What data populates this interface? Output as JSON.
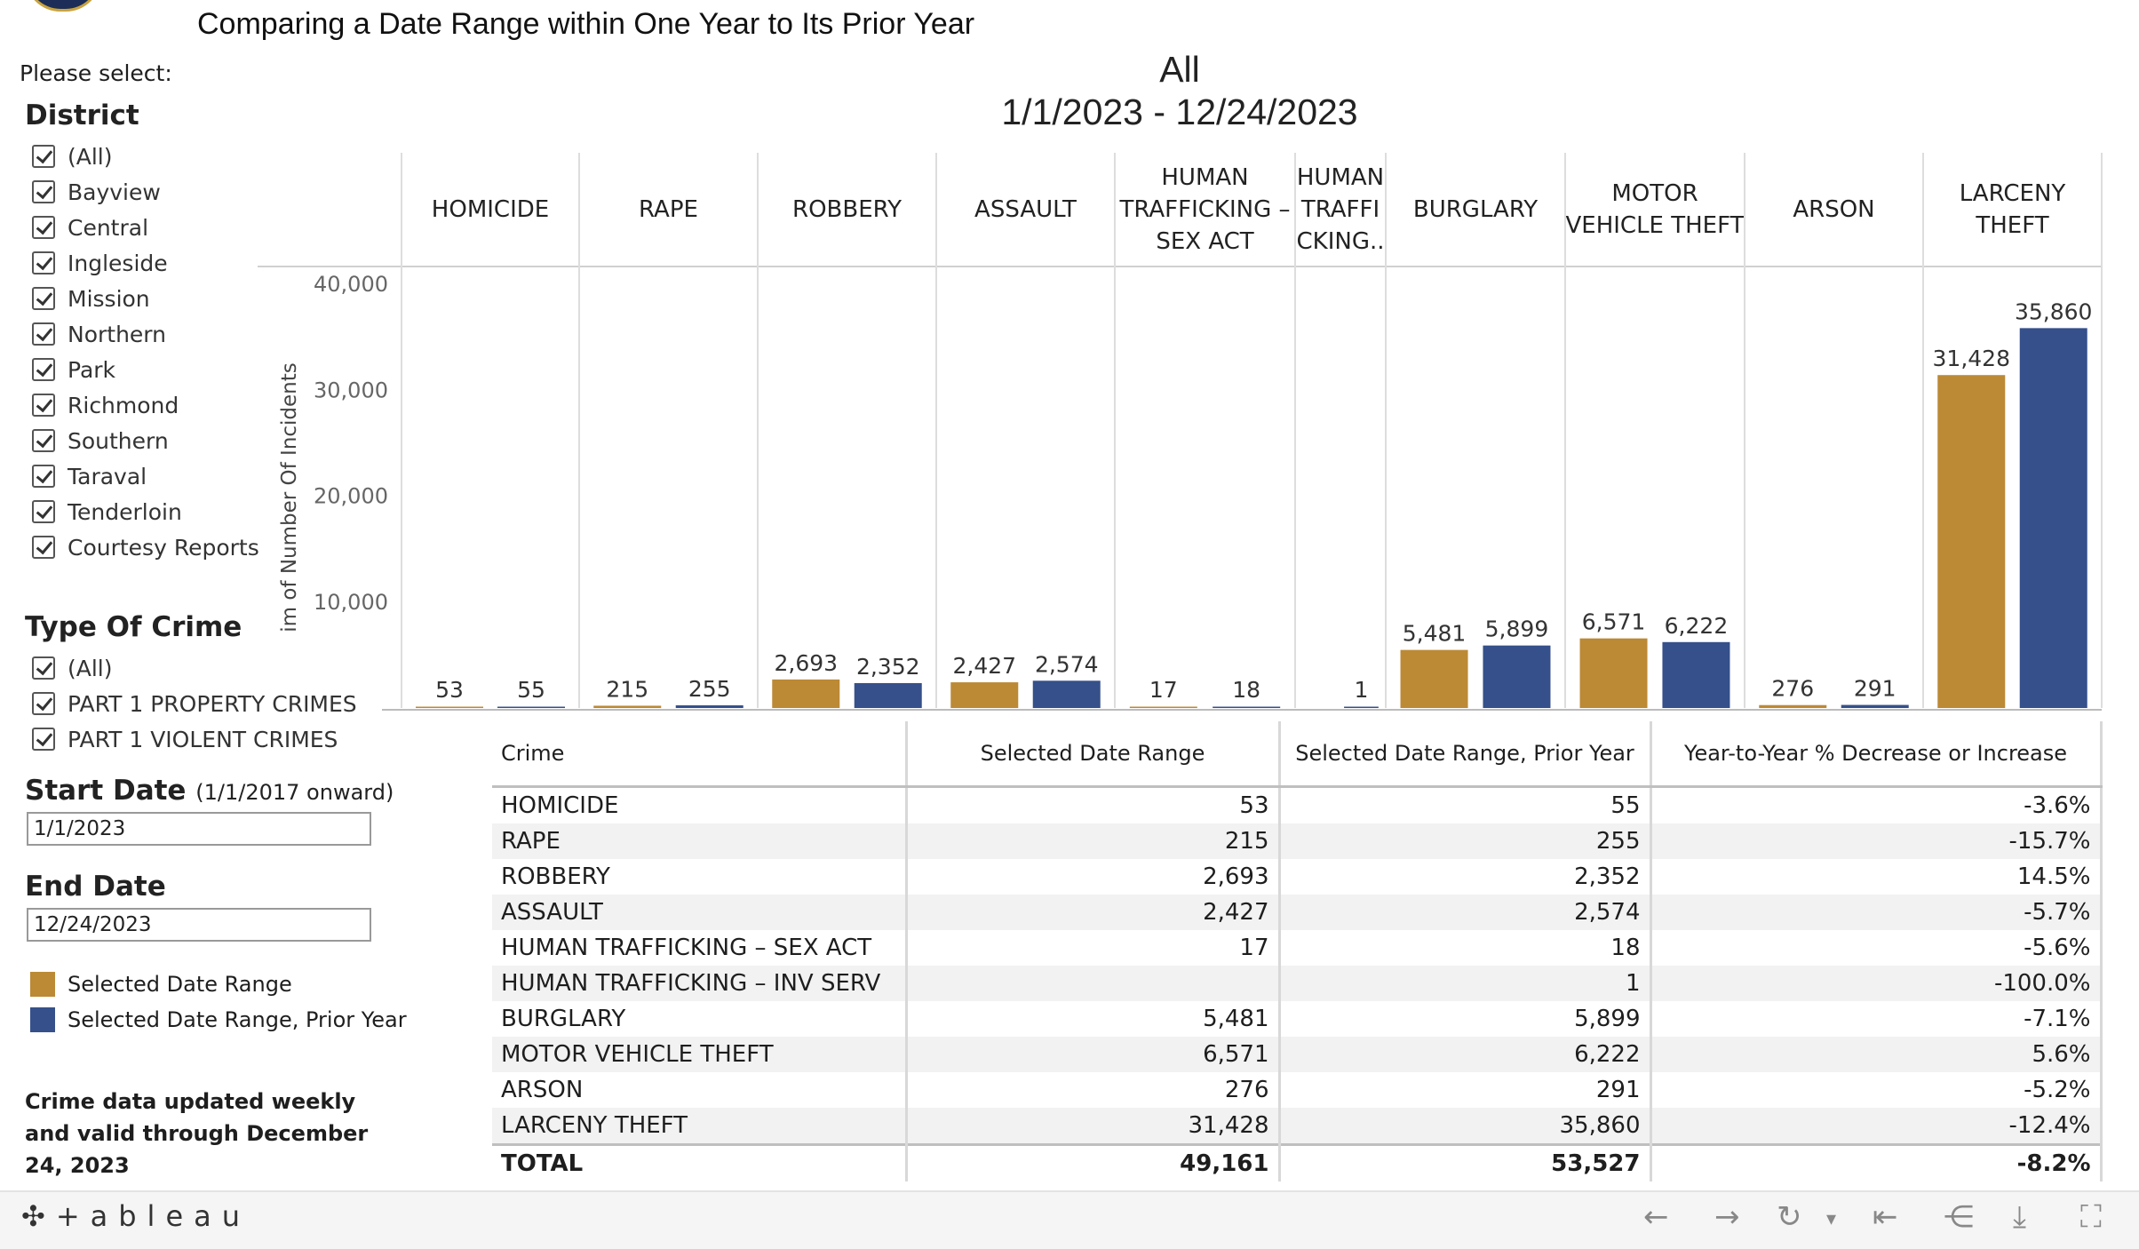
{
  "page_title": "Comparing a Date Range within One Year to Its Prior Year",
  "filters": {
    "please_select": "Please select:",
    "district": {
      "title": "District",
      "options": [
        "(All)",
        "Bayview",
        "Central",
        "Ingleside",
        "Mission",
        "Northern",
        "Park",
        "Richmond",
        "Southern",
        "Taraval",
        "Tenderloin",
        "Courtesy Reports"
      ]
    },
    "type_of_crime": {
      "title": "Type Of Crime",
      "options": [
        "(All)",
        "PART 1 PROPERTY CRIMES",
        "PART 1 VIOLENT CRIMES"
      ]
    },
    "start_date": {
      "title": "Start Date",
      "subtitle": "(1/1/2017 onward)",
      "value": "1/1/2023"
    },
    "end_date": {
      "title": "End Date",
      "value": "12/24/2023"
    }
  },
  "legend": {
    "selected": {
      "label": "Selected Date Range",
      "color": "#bc8935"
    },
    "prior": {
      "label": "Selected Date Range, Prior Year",
      "color": "#35508a"
    }
  },
  "update_note": "Crime data updated weekly and valid through December 24, 2023",
  "chart_data": {
    "type": "bar",
    "title": "All",
    "subtitle": "1/1/2023 - 12/24/2023",
    "ylabel": "im of Number Of Incidents",
    "yticks": [
      "40,000",
      "30,000",
      "20,000",
      "10,000"
    ],
    "ylim": [
      0,
      40000
    ],
    "grid": false,
    "categories": [
      "HOMICIDE",
      "RAPE",
      "ROBBERY",
      "ASSAULT",
      "HUMAN TRAFFICKING – SEX ACT",
      "HUMAN TRAFFI CKING..",
      "BURGLARY",
      "MOTOR VEHICLE THEFT",
      "ARSON",
      "LARCENY THEFT"
    ],
    "series": [
      {
        "name": "Selected Date Range",
        "color": "#bc8935",
        "values": [
          53,
          215,
          2693,
          2427,
          17,
          null,
          5481,
          6571,
          276,
          31428
        ],
        "labels": [
          "53",
          "215",
          "2,693",
          "2,427",
          "17",
          "",
          "5,481",
          "6,571",
          "276",
          "31,428"
        ]
      },
      {
        "name": "Selected Date Range, Prior Year",
        "color": "#35508a",
        "values": [
          55,
          255,
          2352,
          2574,
          18,
          1,
          5899,
          6222,
          291,
          35860
        ],
        "labels": [
          "55",
          "255",
          "2,352",
          "2,574",
          "18",
          "1",
          "5,899",
          "6,222",
          "291",
          "35,860"
        ]
      }
    ]
  },
  "table": {
    "headers": [
      "Crime",
      "Selected Date Range",
      "Selected Date Range, Prior Year",
      "Year-to-Year % Decrease or Increase"
    ],
    "rows": [
      [
        "HOMICIDE",
        "53",
        "55",
        "-3.6%"
      ],
      [
        "RAPE",
        "215",
        "255",
        "-15.7%"
      ],
      [
        "ROBBERY",
        "2,693",
        "2,352",
        "14.5%"
      ],
      [
        "ASSAULT",
        "2,427",
        "2,574",
        "-5.7%"
      ],
      [
        "HUMAN TRAFFICKING – SEX ACT",
        "17",
        "18",
        "-5.6%"
      ],
      [
        "HUMAN TRAFFICKING – INV SERV",
        "",
        "1",
        "-100.0%"
      ],
      [
        "BURGLARY",
        "5,481",
        "5,899",
        "-7.1%"
      ],
      [
        "MOTOR VEHICLE THEFT",
        "6,571",
        "6,222",
        "5.6%"
      ],
      [
        "ARSON",
        "276",
        "291",
        "-5.2%"
      ],
      [
        "LARCENY THEFT",
        "31,428",
        "35,860",
        "-12.4%"
      ]
    ],
    "total": [
      "TOTAL",
      "49,161",
      "53,527",
      "-8.2%"
    ]
  },
  "footer": {
    "brand": "+ableau",
    "icons": [
      "undo-icon",
      "redo-icon",
      "revert-icon",
      "dropdown-icon",
      "reset-icon",
      "share-icon",
      "download-icon",
      "fullscreen-icon"
    ]
  }
}
